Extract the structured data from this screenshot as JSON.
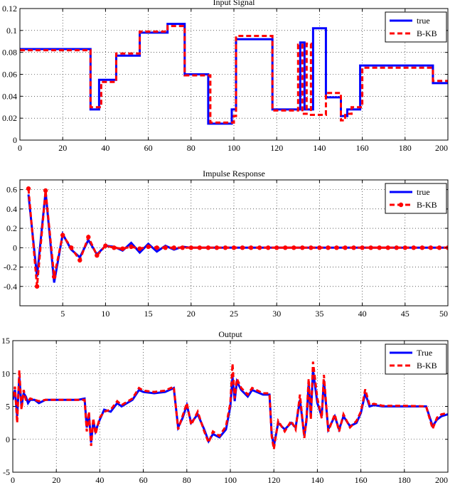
{
  "chart_data": [
    {
      "type": "line",
      "title": "Input Signal",
      "xlim": [
        0,
        200
      ],
      "ylim": [
        0,
        0.12
      ],
      "xticks": [
        0,
        20,
        40,
        60,
        80,
        100,
        120,
        140,
        160,
        180,
        200
      ],
      "yticks": [
        0,
        0.02,
        0.04,
        0.06,
        0.08,
        0.1,
        0.12
      ],
      "ytick_labels": [
        "0",
        "0.02",
        "0.04",
        "0.06",
        "0.08",
        "0.1",
        "0.12"
      ],
      "grid": true,
      "legend_position": "top-right",
      "series": [
        {
          "name": "true",
          "color": "#0000ff",
          "style": "solid",
          "step": true,
          "x": [
            0,
            33,
            37,
            45,
            56,
            69,
            77,
            88,
            99,
            101,
            118,
            131,
            133,
            137,
            143,
            150,
            153,
            159,
            193,
            200
          ],
          "y": [
            0.083,
            0.028,
            0.055,
            0.077,
            0.098,
            0.106,
            0.06,
            0.015,
            0.028,
            0.092,
            0.028,
            0.089,
            0.028,
            0.102,
            0.039,
            0.022,
            0.028,
            0.068,
            0.052,
            0.052
          ]
        },
        {
          "name": "B-KB",
          "color": "#ff0000",
          "style": "dashed",
          "step": true,
          "x": [
            0,
            33,
            38,
            45,
            56,
            69,
            77,
            89,
            100,
            101,
            118,
            130,
            132,
            134,
            136,
            143,
            150,
            152,
            155,
            160,
            193,
            200
          ],
          "y": [
            0.082,
            0.03,
            0.053,
            0.079,
            0.099,
            0.104,
            0.059,
            0.016,
            0.022,
            0.095,
            0.027,
            0.087,
            0.024,
            0.088,
            0.023,
            0.043,
            0.018,
            0.024,
            0.03,
            0.066,
            0.054,
            0.054
          ]
        }
      ]
    },
    {
      "type": "line",
      "title": "Impulse Response",
      "xlim": [
        0,
        50
      ],
      "ylim": [
        -0.6,
        0.7
      ],
      "xticks": [
        5,
        10,
        15,
        20,
        25,
        30,
        35,
        40,
        45,
        50
      ],
      "yticks": [
        -0.4,
        -0.2,
        0,
        0.2,
        0.4,
        0.6
      ],
      "ytick_labels": [
        "-0.4",
        "-0.2",
        "0",
        "0.2",
        "0.4",
        "0.6"
      ],
      "grid": true,
      "legend_position": "top-right",
      "series": [
        {
          "name": "true",
          "color": "#0000ff",
          "style": "solid",
          "markers": false,
          "x": [
            1,
            2,
            3,
            4,
            5,
            6,
            7,
            8,
            9,
            10,
            11,
            12,
            13,
            14,
            15,
            16,
            17,
            18,
            19,
            20,
            21,
            22,
            23,
            24,
            25,
            26,
            27,
            28,
            29,
            30,
            31,
            32,
            33,
            34,
            35,
            36,
            37,
            38,
            39,
            40,
            41,
            42,
            43,
            44,
            45,
            46,
            47,
            48,
            49,
            50
          ],
          "y": [
            0.55,
            -0.3,
            0.58,
            -0.36,
            0.14,
            -0.02,
            -0.1,
            0.08,
            -0.07,
            0.02,
            0.01,
            -0.03,
            0.05,
            -0.05,
            0.04,
            -0.04,
            0.02,
            -0.02,
            0.01,
            0,
            0,
            0,
            0,
            0,
            0,
            0,
            0,
            0,
            0,
            0,
            0,
            0,
            0,
            0,
            0,
            0,
            0,
            0,
            0,
            0,
            0,
            0,
            0,
            0,
            0,
            0,
            0,
            0,
            0,
            0
          ]
        },
        {
          "name": "B-KB",
          "color": "#ff0000",
          "style": "dashed",
          "markers": true,
          "x": [
            1,
            2,
            3,
            4,
            5,
            6,
            7,
            8,
            9,
            10,
            11,
            12,
            13,
            14,
            15,
            16,
            17,
            18,
            19,
            20,
            21,
            22,
            23,
            24,
            25,
            26,
            27,
            28,
            29,
            30,
            31,
            32,
            33,
            34,
            35,
            36,
            37,
            38,
            39,
            40,
            41,
            42,
            43,
            44,
            45,
            46,
            47,
            48,
            49,
            50
          ],
          "y": [
            0.61,
            -0.4,
            0.59,
            -0.3,
            0.13,
            0,
            -0.13,
            0.11,
            -0.08,
            0.02,
            0,
            -0.01,
            0.01,
            -0.01,
            0.01,
            0,
            0,
            0,
            0,
            0,
            0,
            0,
            0,
            0,
            0,
            0,
            0,
            0,
            0,
            0,
            0,
            0,
            0,
            0,
            0,
            0,
            0,
            0,
            0,
            0,
            0,
            0,
            0,
            0,
            0,
            0,
            0,
            0,
            0,
            0
          ]
        }
      ]
    },
    {
      "type": "line",
      "title": "Output",
      "xlim": [
        0,
        200
      ],
      "ylim": [
        -5,
        15
      ],
      "xticks": [
        0,
        20,
        40,
        60,
        80,
        100,
        120,
        140,
        160,
        180,
        200
      ],
      "yticks": [
        -5,
        0,
        5,
        10,
        15
      ],
      "ytick_labels": [
        "-5",
        "0",
        "5",
        "10",
        "15"
      ],
      "grid": true,
      "legend_position": "top-right",
      "series": [
        {
          "name": "True",
          "color": "#0000ff",
          "style": "solid",
          "x": [
            0,
            1,
            2,
            3,
            4,
            5,
            6,
            7,
            8,
            10,
            12,
            15,
            20,
            25,
            30,
            33,
            34,
            35,
            36,
            37,
            38,
            40,
            42,
            45,
            48,
            50,
            55,
            58,
            60,
            65,
            70,
            74,
            76,
            78,
            80,
            82,
            85,
            88,
            90,
            92,
            95,
            98,
            100,
            101,
            102,
            103,
            105,
            108,
            110,
            115,
            118,
            119,
            120,
            122,
            125,
            128,
            130,
            132,
            134,
            135,
            136,
            137,
            138,
            140,
            142,
            143,
            145,
            148,
            150,
            152,
            155,
            158,
            160,
            161,
            162,
            164,
            166,
            170,
            180,
            190,
            193,
            195,
            197,
            200
          ],
          "y": [
            6,
            7.5,
            3.5,
            9.5,
            5,
            7,
            6.5,
            5.5,
            6,
            6,
            5.5,
            6,
            6,
            6,
            6,
            6.2,
            1.8,
            3.8,
            -0.5,
            2.8,
            1.2,
            3,
            4.5,
            4.2,
            5.5,
            5,
            6,
            7.5,
            7.2,
            7,
            7.2,
            7.8,
            1.8,
            3.2,
            5.2,
            2.5,
            3.8,
            1.5,
            -0.3,
            0.8,
            0.3,
            1.5,
            5,
            9.5,
            5.8,
            8.8,
            7.5,
            6.5,
            7.5,
            6.8,
            6.8,
            0.8,
            -1,
            2.5,
            1.5,
            2.5,
            1.8,
            6,
            0.5,
            2.8,
            8.5,
            3.5,
            10.5,
            5.5,
            3.5,
            9,
            1.5,
            3.5,
            1.5,
            3.5,
            2,
            2.5,
            4,
            5.5,
            7,
            5,
            5.2,
            5,
            5,
            5,
            2,
            3,
            3.5,
            3.8
          ]
        },
        {
          "name": "B-KB",
          "color": "#ff0000",
          "style": "dashed",
          "x": [
            0,
            1,
            2,
            3,
            4,
            5,
            6,
            7,
            8,
            10,
            12,
            15,
            20,
            25,
            30,
            33,
            34,
            35,
            36,
            37,
            38,
            40,
            42,
            45,
            48,
            50,
            55,
            58,
            60,
            65,
            70,
            74,
            76,
            78,
            80,
            82,
            85,
            88,
            90,
            92,
            95,
            98,
            100,
            101,
            102,
            103,
            105,
            108,
            110,
            115,
            118,
            119,
            120,
            122,
            125,
            128,
            130,
            132,
            134,
            135,
            136,
            137,
            138,
            140,
            142,
            143,
            145,
            148,
            150,
            152,
            155,
            158,
            160,
            161,
            162,
            164,
            166,
            170,
            180,
            190,
            193,
            195,
            197,
            200
          ],
          "y": [
            6.5,
            8,
            2.5,
            10.5,
            4.5,
            7.5,
            6,
            5.8,
            6.2,
            6,
            5.8,
            6,
            6,
            6,
            6,
            6,
            1.2,
            4.2,
            -1,
            3.2,
            0.8,
            3.3,
            4.2,
            4.5,
            5.8,
            5.2,
            6.2,
            7.8,
            7.4,
            7.2,
            7.4,
            8,
            1.5,
            3.5,
            5.5,
            2.2,
            4.2,
            1.2,
            -0.5,
            1.2,
            0.5,
            2,
            5.5,
            11.5,
            6.2,
            9.2,
            7.8,
            6.8,
            7.8,
            7,
            7,
            0.5,
            -1.5,
            2.8,
            1.2,
            2.8,
            1.5,
            6.8,
            0.2,
            3.2,
            9.2,
            3,
            11.8,
            6.2,
            3.2,
            9.8,
            1.2,
            3.8,
            1.2,
            3.8,
            1.8,
            2.8,
            4.2,
            5.8,
            7.6,
            5.2,
            5.4,
            5.1,
            5.1,
            5,
            1.6,
            3.3,
            3.8,
            4
          ]
        }
      ]
    }
  ]
}
